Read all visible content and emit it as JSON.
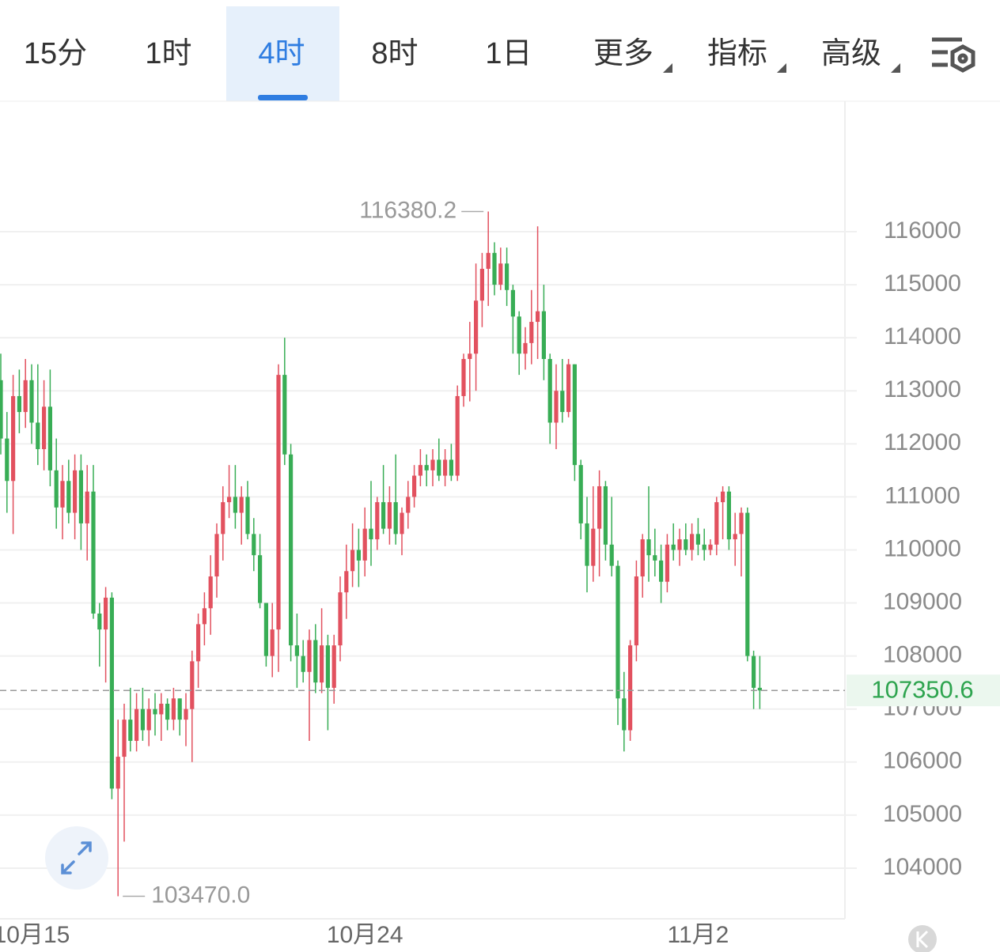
{
  "toolbar": {
    "tabs": [
      "15分",
      "1时",
      "4时",
      "8时",
      "1日",
      "更多",
      "指标",
      "高级"
    ],
    "active": 2
  },
  "chart_data": {
    "type": "candlestick",
    "categories": [
      null,
      null,
      null,
      null,
      null,
      "10月15",
      null,
      null,
      null,
      null,
      null,
      null,
      null,
      null,
      null,
      null,
      null,
      null,
      null,
      null,
      null,
      null,
      null,
      null,
      null,
      null,
      null,
      null,
      null,
      null,
      null,
      null,
      null,
      null,
      null,
      null,
      null,
      null,
      null,
      null,
      null,
      null,
      null,
      null,
      null,
      null,
      null,
      null,
      null,
      null,
      null,
      null,
      null,
      null,
      null,
      null,
      null,
      null,
      null,
      "10月24",
      null,
      null,
      null,
      null,
      null,
      null,
      null,
      null,
      null,
      null,
      null,
      null,
      null,
      null,
      null,
      null,
      null,
      null,
      null,
      null,
      null,
      null,
      null,
      null,
      null,
      null,
      null,
      null,
      null,
      null,
      null,
      null,
      null,
      null,
      null,
      null,
      null,
      null,
      null,
      null,
      null,
      null,
      null,
      null,
      null,
      null,
      null,
      null,
      null,
      null,
      null,
      null,
      null,
      "11月2",
      null,
      null,
      null,
      null,
      null,
      null,
      null,
      null,
      null,
      null
    ],
    "open": [
      113200,
      112100,
      111300,
      112900,
      112600,
      113200,
      112400,
      111900,
      112700,
      111500,
      110800,
      111300,
      110700,
      111500,
      110500,
      111100,
      108800,
      108500,
      109100,
      105500,
      106100,
      106800,
      106400,
      107000,
      106600,
      107000,
      106900,
      107100,
      106800,
      107200,
      106800,
      107000,
      107900,
      108600,
      108900,
      109500,
      110300,
      110900,
      111000,
      110700,
      111000,
      110300,
      109900,
      109000,
      108000,
      108500,
      113300,
      111800,
      108200,
      108000,
      107700,
      108300,
      107500,
      108200,
      107400,
      108200,
      109200,
      109600,
      110000,
      109800,
      110400,
      110200,
      110900,
      110400,
      110900,
      110300,
      110700,
      111000,
      111400,
      111600,
      111500,
      111700,
      111400,
      111700,
      111400,
      112900,
      113600,
      113700,
      114700,
      115300,
      115600,
      115000,
      115400,
      114900,
      114400,
      113700,
      113900,
      114300,
      114500,
      113600,
      112400,
      113000,
      112600,
      113500,
      111600,
      110500,
      109700,
      110400,
      111200,
      110100,
      109700,
      107200,
      106600,
      108200,
      109500,
      110200,
      109900,
      109800,
      109400,
      110100,
      110000,
      110200,
      110000,
      110300,
      110100,
      110000,
      110100,
      110900,
      111100,
      110200,
      110300,
      110700,
      108000,
      107400
    ],
    "high": [
      113700,
      112600,
      113300,
      113400,
      113600,
      113500,
      113500,
      113200,
      113400,
      112100,
      111600,
      111700,
      111800,
      111800,
      111600,
      111600,
      109000,
      109300,
      109200,
      106800,
      107100,
      107400,
      107300,
      107400,
      107200,
      107300,
      107300,
      107200,
      107400,
      107200,
      107300,
      108100,
      108800,
      109200,
      109900,
      110500,
      111200,
      111600,
      111600,
      111200,
      111300,
      110600,
      110300,
      109000,
      109000,
      113500,
      114000,
      112000,
      108800,
      108300,
      108500,
      108600,
      108900,
      108400,
      108400,
      109500,
      110100,
      110500,
      110400,
      110800,
      111300,
      111000,
      111600,
      111200,
      111800,
      110800,
      111300,
      111600,
      111900,
      111800,
      111900,
      112100,
      111900,
      112000,
      113100,
      113700,
      114300,
      115400,
      115600,
      116380.2,
      115800,
      115700,
      115700,
      115000,
      114500,
      114200,
      114900,
      116100,
      115000,
      113700,
      113500,
      113600,
      113600,
      113500,
      111700,
      111000,
      111200,
      111500,
      111300,
      111000,
      109800,
      107700,
      108300,
      109800,
      110300,
      111200,
      110400,
      110100,
      110300,
      110500,
      110400,
      110500,
      110500,
      110600,
      110400,
      110200,
      111000,
      111200,
      111200,
      110700,
      110800,
      110800,
      108100,
      108000
    ],
    "low": [
      111800,
      110700,
      110300,
      112200,
      112300,
      112000,
      111600,
      111500,
      111200,
      110400,
      110200,
      110500,
      110200,
      110000,
      109800,
      108700,
      107800,
      107500,
      105300,
      103470,
      104500,
      106200,
      106200,
      106400,
      106300,
      106500,
      106400,
      106600,
      106600,
      106500,
      106300,
      106000,
      107400,
      108200,
      108400,
      109100,
      109800,
      110600,
      110400,
      110100,
      110200,
      109600,
      108900,
      107800,
      107600,
      107700,
      111600,
      107900,
      107400,
      107500,
      106400,
      107300,
      107300,
      106600,
      107100,
      107900,
      108700,
      109300,
      109300,
      109500,
      109700,
      110000,
      110300,
      110100,
      110100,
      109900,
      110400,
      110800,
      111200,
      111200,
      111200,
      111300,
      111200,
      111300,
      111300,
      112700,
      112800,
      113000,
      114200,
      114600,
      114800,
      114900,
      114600,
      113700,
      113300,
      113400,
      113500,
      113600,
      113200,
      112000,
      111900,
      112400,
      112500,
      111300,
      110200,
      109200,
      109400,
      109500,
      109800,
      109500,
      106700,
      106200,
      106400,
      107900,
      109100,
      109400,
      109500,
      109000,
      109200,
      109800,
      109700,
      109900,
      109800,
      109900,
      109800,
      109900,
      109900,
      110200,
      110000,
      109700,
      109500,
      107900,
      107000,
      107000
    ],
    "close": [
      112100,
      111300,
      112900,
      112600,
      113200,
      112400,
      111900,
      112700,
      111500,
      110800,
      111300,
      110700,
      111500,
      110500,
      111100,
      108800,
      108500,
      109100,
      105500,
      106100,
      106800,
      106400,
      107000,
      106600,
      107000,
      106900,
      107100,
      106800,
      107200,
      106800,
      107000,
      107900,
      108600,
      108900,
      109500,
      110300,
      110900,
      111000,
      110700,
      111000,
      110300,
      109900,
      109000,
      108000,
      108500,
      113300,
      111800,
      108200,
      108000,
      107700,
      108300,
      107500,
      108200,
      107400,
      108200,
      109200,
      109600,
      110000,
      109800,
      110400,
      110200,
      110900,
      110400,
      110900,
      110300,
      110700,
      111000,
      111400,
      111600,
      111500,
      111700,
      111400,
      111700,
      111400,
      112900,
      113600,
      113700,
      114700,
      115300,
      115600,
      115000,
      115400,
      114900,
      114400,
      113700,
      113900,
      114300,
      114500,
      113600,
      112400,
      113000,
      112600,
      113500,
      111600,
      110500,
      109700,
      110400,
      111200,
      110100,
      109700,
      107200,
      106600,
      108200,
      109500,
      110200,
      109900,
      109800,
      109400,
      110100,
      110000,
      110200,
      110000,
      110300,
      110100,
      110000,
      110100,
      110900,
      111100,
      110200,
      110300,
      110700,
      108000,
      107400,
      107350.6
    ],
    "low_label": "103470.0",
    "up_color": "#e2515f",
    "down_color": "#38ad55",
    "ylim": [
      103045,
      118460
    ],
    "yticks": [
      104000,
      105000,
      106000,
      107000,
      108000,
      109000,
      110000,
      111000,
      112000,
      113000,
      114000,
      115000,
      116000
    ],
    "grid": true
  }
}
